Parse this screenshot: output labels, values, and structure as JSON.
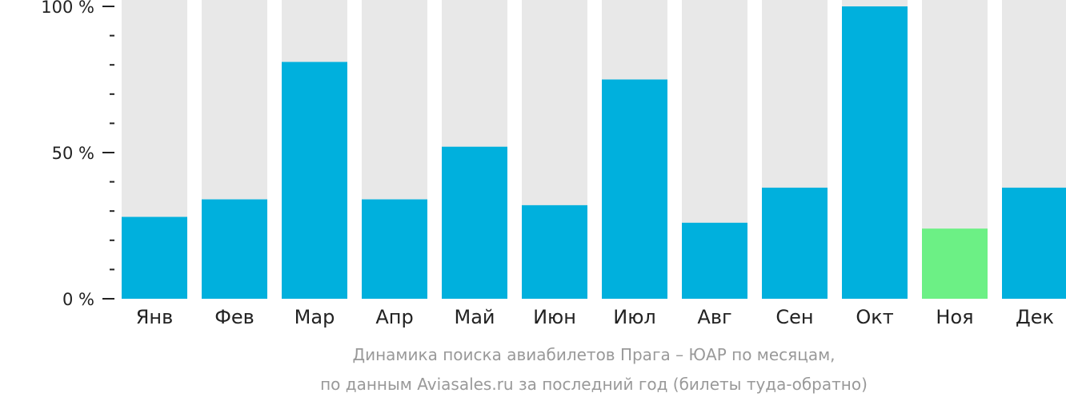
{
  "chart_data": {
    "type": "bar",
    "categories": [
      "Янв",
      "Фев",
      "Мар",
      "Апр",
      "Май",
      "Июн",
      "Июл",
      "Авг",
      "Сен",
      "Окт",
      "Ноя",
      "Дек"
    ],
    "values": [
      28,
      34,
      81,
      34,
      52,
      32,
      75,
      26,
      38,
      100,
      24,
      38
    ],
    "highlight_index": 10,
    "ylim": [
      0,
      100
    ],
    "yticks": [
      {
        "value": 0,
        "label": "0 %"
      },
      {
        "value": 50,
        "label": "50 %"
      },
      {
        "value": 100,
        "label": "100 %"
      }
    ],
    "minor_tick_step": 10,
    "caption_line1": "Динамика поиска авиабилетов Прага – ЮАР по месяцам,",
    "caption_line2": "по данным Aviasales.ru за последний год (билеты туда-обратно)",
    "colors": {
      "bar": "#00b0dd",
      "highlight": "#6cf085",
      "background_bar": "#e8e8e8",
      "axis": "#222222",
      "caption": "#999999"
    }
  }
}
